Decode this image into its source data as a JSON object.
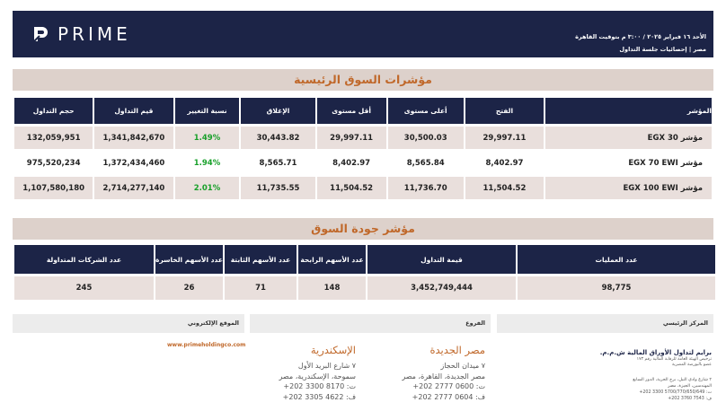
{
  "header": {
    "brand": "PRIME",
    "date_line": "الأحد ١٦ فبراير ٢٠٢٥ / ٣:٠٠ م بتوقيت القاهرة",
    "subtitle": "مصر | إحصائيات جلسة التداول"
  },
  "main_indices": {
    "title": "مؤشرات السوق الرئيسية",
    "columns": {
      "index": "المؤشر",
      "open": "الفتح",
      "high": "أعلى مستوى",
      "low": "أقل مستوى",
      "close": "الإغلاق",
      "change": "نسبة التغيير",
      "value": "قيم التداول",
      "volume": "حجم التداول"
    },
    "rows": [
      {
        "index": "مؤشر EGX 30",
        "open": "29,997.11",
        "high": "30,500.03",
        "low": "29,997.11",
        "close": "30,443.82",
        "change": "1.49%",
        "value": "1,341,842,670",
        "volume": "132,059,951"
      },
      {
        "index": "مؤشر EGX 70 EWI",
        "open": "8,402.97",
        "high": "8,565.84",
        "low": "8,402.97",
        "close": "8,565.71",
        "change": "1.94%",
        "value": "1,372,434,460",
        "volume": "975,520,234"
      },
      {
        "index": "مؤشر EGX 100 EWI",
        "open": "11,504.52",
        "high": "11,736.70",
        "low": "11,504.52",
        "close": "11,735.55",
        "change": "2.01%",
        "value": "2,714,277,140",
        "volume": "1,107,580,180"
      }
    ]
  },
  "market_quality": {
    "title": "مؤشر جودة السوق",
    "columns": {
      "trades": "عدد العمليات",
      "turnover": "قيمة التداول",
      "gainers": "عدد الأسهم الرابحة",
      "unchanged": "عدد الأسهم الثابتة",
      "losers": "عدد الأسهم الخاسرة",
      "traded": "عدد الشركات المتداولة"
    },
    "values": {
      "trades": "98,775",
      "turnover": "3,452,749,444",
      "gainers": "148",
      "unchanged": "71",
      "losers": "26",
      "traded": "245"
    }
  },
  "footer": {
    "headquarters_label": "المركز الرئيسي",
    "branches_label": "الفروع",
    "website_label": "الموقع الإلكتروني",
    "website": "www.primeholdingco.com",
    "heliopolis": {
      "city": "مصر الجديدة",
      "address_1": "٧ ميدان الحجاز",
      "address_2": "مصر الجديدة، القاهرة، مصر",
      "phone": "ت: 0600 2777 202+",
      "fax": "ف: 0604 2777 202+"
    },
    "alexandria": {
      "city": "الإسكندرية",
      "address_1": "٧ شارع البريد الأول",
      "address_2": "سموحة، الإسكندرية، مصر",
      "phone": "ت: 8170 3300 202+",
      "fax": "ف: 4622 3305 202+"
    },
    "company": {
      "name": "برايم لتداول الأوراق المالية ش.م.م.",
      "license_1": "ترخيص الهيئة العامة للرقابة المالية رقم ١٧٣",
      "license_2": "عضو بالبورصة المصرية",
      "address_1": "٢ شارع وادي النيل، برج الحرية، الدور السابع",
      "address_2": "المهندسين، الجيزة، مصر",
      "phone": "ت: 5700/770/650/649 3300 202+",
      "fax": "ف: 7543 3760 202+"
    }
  }
}
